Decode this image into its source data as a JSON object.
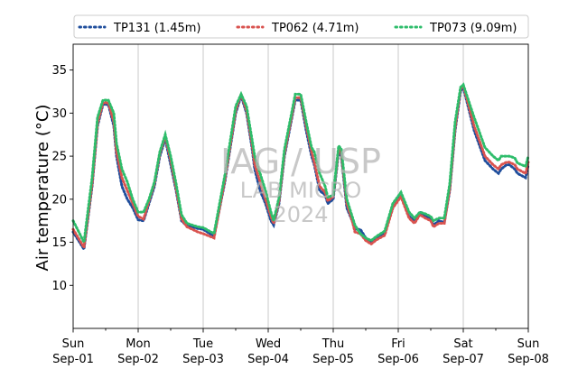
{
  "chart_data": {
    "type": "line",
    "ylabel": "Air temperature (°C)",
    "xlabel": "",
    "ylim": [
      5,
      38
    ],
    "xlim": [
      "2024-09-01 00:00",
      "2024-09-08 00:00"
    ],
    "yticks": [
      10,
      15,
      20,
      25,
      30,
      35
    ],
    "xticks": [
      {
        "day": "Sun",
        "date": "Sep-01"
      },
      {
        "day": "Mon",
        "date": "Sep-02"
      },
      {
        "day": "Tue",
        "date": "Sep-03"
      },
      {
        "day": "Wed",
        "date": "Sep-04"
      },
      {
        "day": "Thu",
        "date": "Sep-05"
      },
      {
        "day": "Fri",
        "date": "Sep-06"
      },
      {
        "day": "Sat",
        "date": "Sep-07"
      },
      {
        "day": "Sun",
        "date": "Sep-08"
      }
    ],
    "grid": "vertical at day boundaries",
    "legend_position": "top",
    "watermark": [
      "IAG / USP",
      "LAB MICRO",
      "2024"
    ],
    "x_hours": [
      0,
      4,
      7,
      9,
      11,
      13,
      15,
      16,
      18,
      20,
      22,
      24,
      26,
      28,
      30,
      32,
      34,
      36,
      38,
      40,
      42,
      44,
      46,
      48,
      52,
      56,
      60,
      62,
      64,
      66,
      67,
      69,
      71,
      73,
      74,
      76,
      78,
      82,
      84,
      86,
      88,
      89,
      91,
      93,
      94,
      96,
      98,
      99,
      101,
      103,
      104,
      106,
      108,
      110,
      112,
      115,
      118,
      121,
      124,
      126,
      128,
      130,
      132,
      133,
      135,
      137,
      139,
      141,
      143,
      144,
      148,
      152,
      155,
      157,
      158,
      160,
      161,
      163,
      164,
      167,
      168
    ],
    "series": [
      {
        "name": "TP131 (1.45m)",
        "color": "#1f4e9c",
        "values": [
          16.2,
          14.2,
          21.5,
          28.5,
          31.0,
          31.0,
          28.5,
          25.0,
          21.5,
          20.0,
          19.0,
          17.6,
          17.5,
          19.5,
          21.5,
          25.0,
          27.0,
          24.0,
          21.0,
          17.5,
          16.9,
          16.8,
          16.6,
          16.5,
          15.7,
          22.0,
          30.0,
          32.0,
          30.0,
          26.0,
          23.5,
          21.0,
          19.5,
          17.5,
          17.0,
          19.5,
          25.0,
          31.5,
          31.5,
          28.0,
          25.0,
          24.0,
          21.0,
          20.5,
          19.5,
          20.0,
          25.5,
          25.0,
          19.0,
          17.5,
          16.5,
          16.5,
          15.5,
          15.0,
          15.5,
          16.0,
          19.0,
          20.5,
          18.0,
          17.5,
          18.5,
          18.0,
          17.8,
          17.0,
          17.5,
          17.3,
          21.0,
          28.0,
          32.5,
          33.0,
          28.0,
          24.5,
          23.5,
          23.0,
          23.5,
          24.0,
          24.0,
          23.5,
          23.0,
          22.5,
          24.0
        ]
      },
      {
        "name": "TP062 (4.71m)",
        "color": "#d9534f",
        "values": [
          16.5,
          14.4,
          21.8,
          28.8,
          31.2,
          31.2,
          29.0,
          25.5,
          22.5,
          21.0,
          19.5,
          18.0,
          17.7,
          19.8,
          21.8,
          25.3,
          27.3,
          24.5,
          21.3,
          17.7,
          16.8,
          16.5,
          16.2,
          16.0,
          15.5,
          22.3,
          30.3,
          32.2,
          30.3,
          26.5,
          24.0,
          22.0,
          20.0,
          18.0,
          17.2,
          19.8,
          25.3,
          31.8,
          31.8,
          28.5,
          25.5,
          24.3,
          21.5,
          20.8,
          19.8,
          20.3,
          25.8,
          25.3,
          19.5,
          17.5,
          16.2,
          16.0,
          15.2,
          14.8,
          15.3,
          15.8,
          19.0,
          20.3,
          17.8,
          17.2,
          18.2,
          17.8,
          17.5,
          16.8,
          17.2,
          17.2,
          21.2,
          28.3,
          32.8,
          33.2,
          28.5,
          25.0,
          24.0,
          23.5,
          24.0,
          24.3,
          24.3,
          24.0,
          23.5,
          23.0,
          24.3
        ]
      },
      {
        "name": "TP073 (9.09m)",
        "color": "#2ebd6b",
        "values": [
          17.5,
          15.0,
          22.5,
          29.5,
          31.5,
          31.5,
          30.0,
          26.5,
          23.5,
          22.0,
          20.0,
          18.5,
          18.5,
          20.0,
          22.0,
          25.5,
          27.5,
          25.0,
          21.8,
          18.2,
          17.2,
          17.0,
          16.8,
          16.7,
          16.0,
          22.8,
          30.8,
          32.2,
          30.8,
          27.0,
          25.0,
          23.0,
          21.0,
          18.5,
          17.5,
          20.2,
          25.8,
          32.2,
          32.2,
          29.0,
          26.0,
          25.5,
          23.0,
          21.5,
          20.2,
          20.5,
          26.2,
          25.8,
          20.0,
          18.0,
          17.0,
          16.0,
          15.5,
          15.2,
          15.7,
          16.3,
          19.5,
          20.8,
          18.5,
          17.8,
          18.5,
          18.3,
          18.0,
          17.5,
          17.8,
          17.8,
          21.8,
          29.0,
          33.0,
          33.3,
          29.5,
          26.0,
          25.0,
          24.5,
          25.0,
          25.0,
          25.0,
          24.8,
          24.2,
          23.8,
          25.0
        ]
      }
    ]
  }
}
